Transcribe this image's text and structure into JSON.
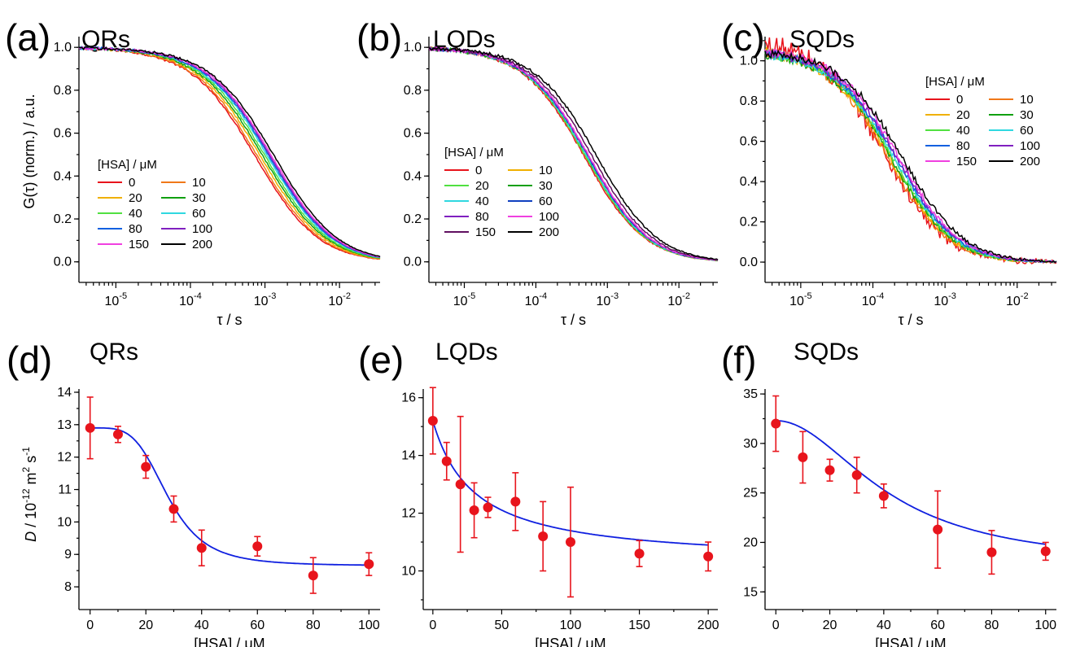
{
  "chart_data": [
    {
      "id": "a",
      "type": "line",
      "panel_label": "(a)",
      "title": "QRs",
      "xlabel": "τ / s",
      "ylabel": "G(τ) (norm.) / a.u.",
      "xscale": "log",
      "xlim": [
        3.2e-06,
        0.035
      ],
      "ylim": [
        -0.02,
        1.05
      ],
      "xticks": [
        {
          "v": 1e-05,
          "b": "10",
          "e": "-5"
        },
        {
          "v": 0.0001,
          "b": "10",
          "e": "-4"
        },
        {
          "v": 0.001,
          "b": "10",
          "e": "-3"
        },
        {
          "v": 0.01,
          "b": "10",
          "e": "-2"
        }
      ],
      "yticks": [
        "0.0",
        "0.2",
        "0.4",
        "0.6",
        "0.8",
        "1.0"
      ],
      "legend": {
        "title": "[HSA] / μM",
        "position": "center-left"
      },
      "series": [
        {
          "name": "0",
          "color": "#e8141c",
          "tau": 0.00075,
          "amp": 1.0,
          "noise": 0.006
        },
        {
          "name": "10",
          "color": "#f07818",
          "tau": 0.0008,
          "amp": 1.0,
          "noise": 0.006
        },
        {
          "name": "20",
          "color": "#f0b000",
          "tau": 0.00088,
          "amp": 1.0,
          "noise": 0.006
        },
        {
          "name": "30",
          "color": "#10a010",
          "tau": 0.00095,
          "amp": 1.0,
          "noise": 0.006
        },
        {
          "name": "40",
          "color": "#50e040",
          "tau": 0.00102,
          "amp": 1.0,
          "noise": 0.006
        },
        {
          "name": "60",
          "color": "#30d8e0",
          "tau": 0.0011,
          "amp": 1.0,
          "noise": 0.006
        },
        {
          "name": "80",
          "color": "#1060e0",
          "tau": 0.00115,
          "amp": 1.0,
          "noise": 0.006
        },
        {
          "name": "100",
          "color": "#8020c0",
          "tau": 0.0012,
          "amp": 1.0,
          "noise": 0.006
        },
        {
          "name": "150",
          "color": "#f040e0",
          "tau": 0.00125,
          "amp": 1.0,
          "noise": 0.006
        },
        {
          "name": "200",
          "color": "#000000",
          "tau": 0.00135,
          "amp": 1.0,
          "noise": 0.006
        }
      ]
    },
    {
      "id": "b",
      "type": "line",
      "panel_label": "(b)",
      "title": "LQDs",
      "xlabel": "τ / s",
      "ylabel": "",
      "xscale": "log",
      "xlim": [
        3.2e-06,
        0.035
      ],
      "ylim": [
        -0.02,
        1.05
      ],
      "xticks": [
        {
          "v": 1e-05,
          "b": "10",
          "e": "-5"
        },
        {
          "v": 0.0001,
          "b": "10",
          "e": "-4"
        },
        {
          "v": 0.001,
          "b": "10",
          "e": "-3"
        },
        {
          "v": 0.01,
          "b": "10",
          "e": "-2"
        }
      ],
      "yticks": [
        "0.0",
        "0.2",
        "0.4",
        "0.6",
        "0.8",
        "1.0"
      ],
      "legend": {
        "title": "[HSA] / μM",
        "position": "center-left"
      },
      "series": [
        {
          "name": "0",
          "color": "#e8141c",
          "tau": 0.00048,
          "amp": 1.0,
          "noise": 0.008
        },
        {
          "name": "10",
          "color": "#f0b000",
          "tau": 0.0005,
          "amp": 1.0,
          "noise": 0.008
        },
        {
          "name": "20",
          "color": "#50e040",
          "tau": 0.0005,
          "amp": 1.0,
          "noise": 0.008
        },
        {
          "name": "30",
          "color": "#10a010",
          "tau": 0.00052,
          "amp": 1.0,
          "noise": 0.008
        },
        {
          "name": "40",
          "color": "#30d8e0",
          "tau": 0.00052,
          "amp": 1.0,
          "noise": 0.008
        },
        {
          "name": "60",
          "color": "#1040c0",
          "tau": 0.00054,
          "amp": 1.0,
          "noise": 0.008
        },
        {
          "name": "80",
          "color": "#8020c0",
          "tau": 0.00055,
          "amp": 1.0,
          "noise": 0.008
        },
        {
          "name": "100",
          "color": "#f040e0",
          "tau": 0.00056,
          "amp": 1.0,
          "noise": 0.008
        },
        {
          "name": "150",
          "color": "#601060",
          "tau": 0.00062,
          "amp": 1.0,
          "noise": 0.008
        },
        {
          "name": "200",
          "color": "#000000",
          "tau": 0.00072,
          "amp": 1.0,
          "noise": 0.008
        }
      ]
    },
    {
      "id": "c",
      "type": "line",
      "panel_label": "(c)",
      "title": "SQDs",
      "xlabel": "τ / s",
      "ylabel": "",
      "xscale": "log",
      "xlim": [
        3.2e-06,
        0.035
      ],
      "ylim": [
        -0.02,
        1.12
      ],
      "xticks": [
        {
          "v": 1e-05,
          "b": "10",
          "e": "-5"
        },
        {
          "v": 0.0001,
          "b": "10",
          "e": "-4"
        },
        {
          "v": 0.001,
          "b": "10",
          "e": "-3"
        },
        {
          "v": 0.01,
          "b": "10",
          "e": "-2"
        }
      ],
      "yticks": [
        "0.0",
        "0.2",
        "0.4",
        "0.6",
        "0.8",
        "1.0"
      ],
      "legend": {
        "title": "[HSA] / μM",
        "position": "top-right"
      },
      "series": [
        {
          "name": "0",
          "color": "#e8141c",
          "tau": 0.000145,
          "amp": 1.1,
          "noise": 0.05
        },
        {
          "name": "10",
          "color": "#f07818",
          "tau": 0.00016,
          "amp": 1.06,
          "noise": 0.025
        },
        {
          "name": "20",
          "color": "#f0b000",
          "tau": 0.00017,
          "amp": 1.06,
          "noise": 0.025
        },
        {
          "name": "30",
          "color": "#10a010",
          "tau": 0.00018,
          "amp": 1.05,
          "noise": 0.02
        },
        {
          "name": "40",
          "color": "#50e040",
          "tau": 0.00019,
          "amp": 1.05,
          "noise": 0.02
        },
        {
          "name": "60",
          "color": "#30d8e0",
          "tau": 0.0002,
          "amp": 1.05,
          "noise": 0.02
        },
        {
          "name": "80",
          "color": "#1060e0",
          "tau": 0.00021,
          "amp": 1.05,
          "noise": 0.02
        },
        {
          "name": "100",
          "color": "#8020c0",
          "tau": 0.00022,
          "amp": 1.05,
          "noise": 0.02
        },
        {
          "name": "150",
          "color": "#f040e0",
          "tau": 0.00023,
          "amp": 1.06,
          "noise": 0.02
        },
        {
          "name": "200",
          "color": "#000000",
          "tau": 0.00026,
          "amp": 1.05,
          "noise": 0.02
        }
      ]
    },
    {
      "id": "d",
      "type": "scatter",
      "panel_label": "(d)",
      "title": "QRs",
      "xlabel": "[HSA] / μM",
      "ylabel": "D / 10-12 m2 s-1",
      "xlim": [
        -4,
        104
      ],
      "ylim": [
        7.6,
        14.1
      ],
      "xticks": [
        "0",
        "20",
        "40",
        "60",
        "80",
        "100"
      ],
      "yticks": [
        "8",
        "9",
        "10",
        "11",
        "12",
        "13",
        "14"
      ],
      "points": [
        {
          "x": 0,
          "y": 12.9,
          "err": 0.95
        },
        {
          "x": 10,
          "y": 12.7,
          "err": 0.25
        },
        {
          "x": 20,
          "y": 11.7,
          "err": 0.35
        },
        {
          "x": 30,
          "y": 10.4,
          "err": 0.4
        },
        {
          "x": 40,
          "y": 9.2,
          "err": 0.55
        },
        {
          "x": 60,
          "y": 9.25,
          "err": 0.3
        },
        {
          "x": 80,
          "y": 8.35,
          "err": 0.55
        },
        {
          "x": 100,
          "y": 8.7,
          "err": 0.35
        }
      ],
      "fit": {
        "kind": "sigmoid",
        "top": 12.9,
        "bottom": 8.65,
        "x50": 28,
        "n": 4.2,
        "xmax": 100
      },
      "point_color": "#e8141c",
      "fit_color": "#1020e0"
    },
    {
      "id": "e",
      "type": "scatter",
      "panel_label": "(e)",
      "title": "LQDs",
      "xlabel": "[HSA] / μM",
      "ylabel": "",
      "xlim": [
        -7,
        207
      ],
      "ylim": [
        9.0,
        16.3
      ],
      "xticks": [
        "0",
        "50",
        "100",
        "150",
        "200"
      ],
      "yticks": [
        "10",
        "12",
        "14",
        "16"
      ],
      "points": [
        {
          "x": 0,
          "y": 15.2,
          "err": 1.15
        },
        {
          "x": 10,
          "y": 13.8,
          "err": 0.65
        },
        {
          "x": 20,
          "y": 13.0,
          "err": 2.35
        },
        {
          "x": 30,
          "y": 12.1,
          "err": 0.95
        },
        {
          "x": 40,
          "y": 12.2,
          "err": 0.35
        },
        {
          "x": 60,
          "y": 12.4,
          "err": 1.0
        },
        {
          "x": 80,
          "y": 11.2,
          "err": 1.2
        },
        {
          "x": 100,
          "y": 11.0,
          "err": 1.9
        },
        {
          "x": 150,
          "y": 10.6,
          "err": 0.45
        },
        {
          "x": 200,
          "y": 10.5,
          "err": 0.5
        }
      ],
      "fit": {
        "kind": "hyperbolic",
        "top": 15.2,
        "bottom": 10.25,
        "k": 30,
        "xmax": 200
      },
      "point_color": "#e8141c",
      "fit_color": "#1020e0"
    },
    {
      "id": "f",
      "type": "scatter",
      "panel_label": "(f)",
      "title": "SQDs",
      "xlabel": "[HSA] / μM",
      "ylabel": "",
      "xlim": [
        -4,
        104
      ],
      "ylim": [
        14.2,
        35.5
      ],
      "xticks": [
        "0",
        "20",
        "40",
        "60",
        "80",
        "100"
      ],
      "yticks": [
        "15",
        "20",
        "25",
        "30",
        "35"
      ],
      "points": [
        {
          "x": 0,
          "y": 32.0,
          "err": 2.8
        },
        {
          "x": 10,
          "y": 28.6,
          "err": 2.6
        },
        {
          "x": 20,
          "y": 27.3,
          "err": 1.1
        },
        {
          "x": 30,
          "y": 26.8,
          "err": 1.8
        },
        {
          "x": 40,
          "y": 24.7,
          "err": 1.2
        },
        {
          "x": 60,
          "y": 21.3,
          "err": 3.9
        },
        {
          "x": 80,
          "y": 19.0,
          "err": 2.2
        },
        {
          "x": 100,
          "y": 19.1,
          "err": 0.9
        }
      ],
      "fit": {
        "kind": "sigmoid",
        "top": 32.3,
        "bottom": 17.6,
        "x50": 42,
        "n": 2.0,
        "xmax": 100
      },
      "point_color": "#e8141c",
      "fit_color": "#1020e0"
    }
  ]
}
